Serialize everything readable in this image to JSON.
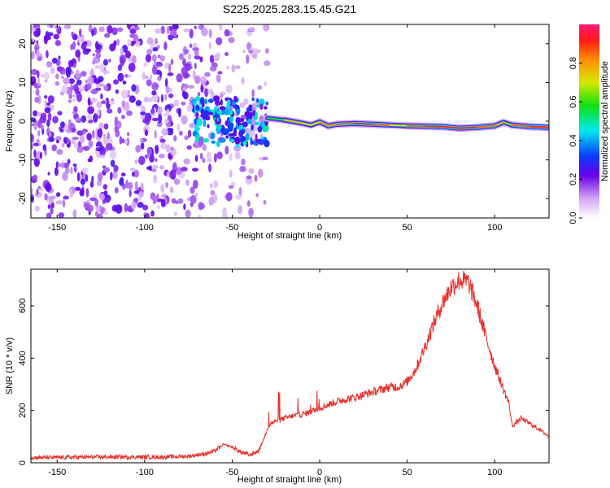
{
  "title": "S225.2025.283.15.45.G21",
  "colors": {
    "snr_line": "#e8302a",
    "frame": "#000000"
  },
  "chart_data": [
    {
      "type": "heatmap",
      "title": "S225.2025.283.15.45.G21",
      "xlabel": "Height of straight line (km)",
      "ylabel": "Frequency (Hz)",
      "xlim": [
        -165,
        131
      ],
      "ylim": [
        -25,
        25
      ],
      "x_ticks": [
        -150,
        -100,
        -50,
        0,
        50,
        100
      ],
      "x_tick_labels": [
        "-150",
        "-100",
        "-50",
        "0",
        "50",
        "100"
      ],
      "y_ticks": [
        -20,
        -10,
        0,
        10,
        20
      ],
      "y_tick_labels": [
        "-20",
        "-10",
        "0",
        "10",
        "20"
      ],
      "colorbar": {
        "label": "Normalized spectral amplitude",
        "range": [
          0,
          1
        ],
        "ticks": [
          0.0,
          0.2,
          0.4,
          0.6,
          0.8
        ],
        "tick_labels": [
          "0.0",
          "0.2",
          "0.4",
          "0.6",
          "0.8"
        ]
      },
      "noise_region": {
        "x_range": [
          -165,
          -30
        ],
        "description_amplitude": "0.05-0.25"
      },
      "signal_ridge": {
        "x": [
          -30,
          -20,
          -10,
          -5,
          0,
          5,
          10,
          20,
          30,
          40,
          50,
          60,
          70,
          80,
          90,
          100,
          105,
          110,
          120,
          131
        ],
        "frequency": [
          0.8,
          0.3,
          -0.5,
          -1.0,
          -0.2,
          -1.2,
          -0.8,
          -0.6,
          -0.8,
          -1.0,
          -1.2,
          -1.3,
          -1.4,
          -1.8,
          -1.6,
          -1.2,
          -0.3,
          -1.0,
          -1.4,
          -1.6
        ],
        "amplitude": [
          0.55,
          0.75,
          0.7,
          0.7,
          0.8,
          0.8,
          0.85,
          0.9,
          0.85,
          0.7,
          0.85,
          0.9,
          0.9,
          0.9,
          0.85,
          0.8,
          0.65,
          0.85,
          0.9,
          0.85
        ]
      }
    },
    {
      "type": "line",
      "title": "",
      "xlabel": "Height of straight line (km)",
      "ylabel": "SNR (10 * v/v)",
      "xlim": [
        -165,
        131
      ],
      "ylim": [
        0,
        740
      ],
      "x_ticks": [
        -150,
        -100,
        -50,
        0,
        50,
        100
      ],
      "x_tick_labels": [
        "-150",
        "-100",
        "-50",
        "0",
        "50",
        "100"
      ],
      "y_ticks": [
        0,
        200,
        400,
        600
      ],
      "y_tick_labels": [
        "0",
        "200",
        "400",
        "600"
      ],
      "series": [
        {
          "name": "SNR",
          "x": [
            -165,
            -150,
            -130,
            -110,
            -90,
            -75,
            -65,
            -60,
            -55,
            -50,
            -45,
            -40,
            -35,
            -32,
            -30,
            -28,
            -25,
            -20,
            -15,
            -10,
            -5,
            0,
            10,
            20,
            30,
            40,
            45,
            50,
            55,
            60,
            65,
            70,
            75,
            80,
            85,
            90,
            95,
            100,
            105,
            108,
            110,
            115,
            120,
            125,
            131
          ],
          "y": [
            20,
            20,
            22,
            22,
            22,
            25,
            35,
            45,
            70,
            60,
            40,
            30,
            45,
            90,
            130,
            150,
            160,
            170,
            180,
            185,
            195,
            210,
            235,
            250,
            270,
            290,
            290,
            310,
            360,
            440,
            530,
            610,
            670,
            700,
            690,
            600,
            480,
            370,
            280,
            230,
            140,
            170,
            150,
            130,
            100
          ]
        }
      ]
    }
  ]
}
